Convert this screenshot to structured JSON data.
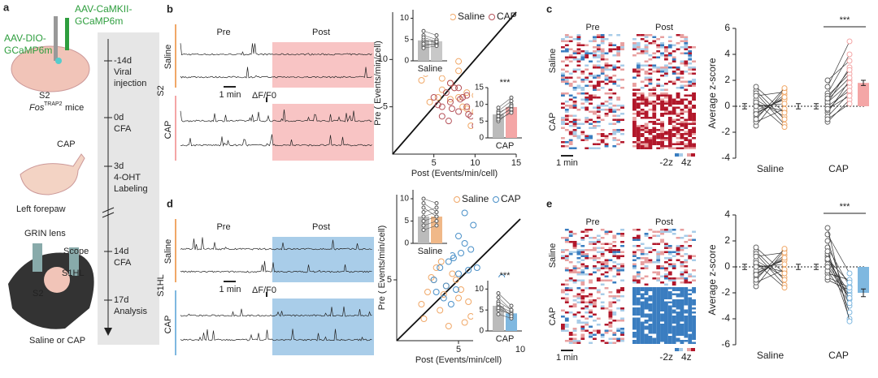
{
  "panel_a": {
    "label": "a",
    "virus1": [
      "AAV-CaMKII-",
      "GCaMP6m"
    ],
    "virus2": [
      "AAV-DIO-",
      "GCaMP6m"
    ],
    "region": "S2",
    "mice": "Fos",
    "mice_sup": "TRAP2",
    "mice_suffix": "mice",
    "cap": "CAP",
    "paw": "Left forepaw",
    "timeline": [
      [
        "-14d",
        "Viral",
        "injection"
      ],
      [
        "0d",
        "CFA"
      ],
      [
        "3d",
        "4-OHT",
        "Labeling"
      ],
      [
        "14d",
        "CFA"
      ],
      [
        "17d",
        "Analysis"
      ]
    ],
    "lens": "GRIN lens",
    "scope": "Scope",
    "s1hl": "S1HL",
    "s2": "S2",
    "treatment": "Saline or CAP"
  },
  "panel_b": {
    "label": "b",
    "pre": "Pre",
    "post": "Post",
    "groups": [
      "Saline",
      "CAP"
    ],
    "region": "S2",
    "time_scale": "1 min",
    "df_scale": "ΔF/F0"
  },
  "panel_c": {
    "label": "c",
    "pre": "Pre",
    "post": "Post",
    "groups": [
      "Saline",
      "CAP"
    ],
    "time_scale": "1 min",
    "cmin": "-2z",
    "cmax": "4z"
  },
  "panel_d": {
    "label": "d",
    "pre": "Pre",
    "post": "Post",
    "groups": [
      "Saline",
      "CAP"
    ],
    "region": "S1HL",
    "time_scale": "1 min",
    "df_scale": "ΔF/F0"
  },
  "panel_e": {
    "label": "e",
    "pre": "Pre",
    "post": "Post",
    "groups": [
      "Saline",
      "CAP"
    ],
    "time_scale": "1 min",
    "cmin": "-2z",
    "cmax": "4z"
  },
  "chart_data": [
    {
      "type": "scatter",
      "xlabel": "Post (Events/min/cell)",
      "ylabel": "Pre ( Events/min/cell)",
      "xlim": [
        0,
        15
      ],
      "ylim": [
        0,
        15
      ],
      "xticks": [
        5,
        10,
        15
      ],
      "yticks": [
        5,
        10
      ],
      "legend": "top-right",
      "identity_line": true,
      "series": [
        {
          "name": "Saline",
          "color": "#f0a868",
          "x": [
            4,
            5,
            6,
            7,
            8,
            9,
            10,
            11,
            12,
            6.5,
            7.5,
            8.5,
            9.5,
            5.5,
            10.5,
            11.5,
            3.5,
            6,
            7,
            8,
            9,
            10,
            12.5,
            4.5,
            8
          ],
          "y": [
            8.5,
            9,
            8,
            7.5,
            6,
            6.5,
            4.5,
            3.5,
            4,
            9.2,
            7,
            5,
            3,
            6,
            5.5,
            2.5,
            7.8,
            6.8,
            5.8,
            8.8,
            4.8,
            6.2,
            3.2,
            5.5,
            9.8
          ]
        },
        {
          "name": "CAP",
          "color": "#b5525a",
          "x": [
            5,
            6,
            6.5,
            7,
            7.5,
            8,
            8.5,
            9,
            9.5,
            10,
            6,
            7,
            8,
            9,
            5.5,
            7.2,
            8.2,
            9.2,
            6.8,
            10.5
          ],
          "y": [
            6,
            5,
            6.5,
            5.5,
            7,
            4.5,
            6,
            5,
            4,
            3,
            4,
            7.5,
            7,
            6.2,
            5.2,
            4.8,
            5.8,
            4.2,
            3.5,
            5.4
          ]
        }
      ]
    },
    {
      "type": "inset",
      "xlabel": "Saline",
      "ylim": [
        0,
        12
      ],
      "yticks": [
        0,
        5,
        10
      ],
      "means": [
        4.8,
        4.6
      ],
      "colors": [
        "#bbbbbb",
        "#c8c8c8"
      ],
      "pre": [
        3.5,
        4.5,
        6,
        5,
        4,
        7,
        3,
        5.5
      ],
      "post": [
        4,
        4.8,
        5,
        4.2,
        3.8,
        6,
        3.5,
        4.5
      ]
    },
    {
      "type": "inset",
      "xlabel": "CAP",
      "annotation": "***",
      "ylim": [
        0,
        15
      ],
      "yticks": [
        0,
        5,
        10,
        15
      ],
      "means": [
        7,
        9.2
      ],
      "colors": [
        "#bbbbbb",
        "#f4a6a6"
      ],
      "pre": [
        5,
        6,
        7,
        8,
        6.5,
        9,
        7.5,
        5.5
      ],
      "post": [
        8,
        9,
        10,
        11,
        8.5,
        12,
        9.5,
        7.5
      ]
    },
    {
      "type": "paired",
      "ylabel": "Average z-score",
      "ylim": [
        -4,
        6
      ],
      "yticks": [
        -4,
        -2,
        0,
        2,
        4,
        6
      ],
      "categories": [
        "Saline",
        "CAP"
      ],
      "annotation": "***",
      "series": [
        {
          "color": "#f0a868",
          "pre": [
            0.5,
            -0.5,
            1.2,
            -1.5,
            0.2,
            -0.8,
            1,
            -0.3,
            0.8,
            -1.2,
            0.3,
            -0.6,
            1.5,
            -1,
            0
          ],
          "post": [
            -0.8,
            0.6,
            -1,
            1.3,
            -0.4,
            0.9,
            -1.4,
            0.5,
            1.1,
            -0.2,
            -1.6,
            0.7,
            -0.5,
            1.4,
            0.2
          ],
          "means": [
            0,
            0
          ],
          "errors": [
            0.2,
            0.2
          ]
        },
        {
          "color": "#f4a6a6",
          "pre": [
            1,
            -0.5,
            0.2,
            -1.2,
            0.8,
            -0.3,
            1.5,
            0.5,
            -0.8,
            0.3,
            2,
            -1,
            0,
            0.6,
            -0.2
          ],
          "post": [
            4,
            2,
            3,
            0.5,
            2.5,
            1.5,
            5,
            2.2,
            1,
            1.8,
            3.5,
            0.2,
            1.2,
            2.8,
            0.8
          ],
          "means": [
            0,
            1.8
          ],
          "errors": [
            0.2,
            0.2
          ]
        }
      ]
    },
    {
      "type": "scatter",
      "xlabel": "Post (Events/min/cell)",
      "ylabel": "Pre ( Events/min/cell)",
      "xlim": [
        0,
        10
      ],
      "ylim": [
        0,
        12
      ],
      "xticks": [
        5,
        10
      ],
      "yticks": [
        5
      ],
      "legend": "top-right",
      "identity_line": true,
      "series": [
        {
          "name": "Saline",
          "color": "#f0a868",
          "x": [
            2,
            2.5,
            3,
            3.5,
            4,
            4.5,
            5,
            5.5,
            6,
            3.2,
            4.2,
            5.2,
            2.8,
            3.8,
            4.8,
            6.5,
            7,
            2.2,
            5.8,
            3.6
          ],
          "y": [
            3,
            4,
            5,
            2.5,
            4.5,
            5.5,
            3.5,
            1.5,
            2,
            6,
            1.2,
            4.2,
            5.2,
            3.8,
            5,
            4.5,
            2.8,
            1.8,
            3.2,
            6.5
          ]
        },
        {
          "name": "CAP",
          "color": "#4a90c8",
          "x": [
            3,
            3.5,
            4,
            4.5,
            5,
            5.5,
            6,
            6.5,
            3.8,
            4.2,
            4.8,
            5.2,
            5.8,
            6.2,
            4.4,
            8.5,
            5.5,
            3.2,
            4.6,
            5
          ],
          "y": [
            5,
            6,
            4.5,
            7,
            5.5,
            8,
            7.5,
            6,
            3.5,
            6.5,
            4.2,
            7.2,
            5.8,
            9.5,
            3,
            5.2,
            10.5,
            4,
            6.8,
            8.6
          ]
        }
      ]
    },
    {
      "type": "inset",
      "xlabel": "Saline",
      "ylim": [
        0,
        12
      ],
      "yticks": [
        0,
        5,
        10
      ],
      "means": [
        6,
        6
      ],
      "colors": [
        "#bbbbbb",
        "#f0b888"
      ],
      "pre": [
        4,
        6,
        8,
        5,
        7,
        9,
        3,
        10
      ],
      "post": [
        5,
        7,
        6,
        6,
        8,
        7,
        4,
        9
      ]
    },
    {
      "type": "inset",
      "xlabel": "CAP",
      "annotation": "***",
      "ylim": [
        0,
        12
      ],
      "yticks": [
        0,
        5,
        10
      ],
      "means": [
        6,
        4.2
      ],
      "colors": [
        "#bbbbbb",
        "#7fb8e0"
      ],
      "pre": [
        4,
        5,
        7,
        6,
        8,
        5.5,
        6.5,
        9
      ],
      "post": [
        3,
        4,
        5,
        4.5,
        5,
        4,
        3.5,
        6
      ]
    },
    {
      "type": "paired",
      "ylabel": "Average z-score",
      "ylim": [
        -6,
        4
      ],
      "yticks": [
        -6,
        -4,
        -2,
        0,
        2,
        4
      ],
      "categories": [
        "Saline",
        "CAP"
      ],
      "annotation": "***",
      "series": [
        {
          "color": "#f0a868",
          "pre": [
            0.5,
            -0.5,
            1.2,
            -1.5,
            0.2,
            -0.8,
            1,
            -0.3,
            0.8,
            -1.2,
            0.3,
            -0.6,
            1.5,
            -1,
            0
          ],
          "post": [
            -0.8,
            0.6,
            -1,
            1.3,
            -0.4,
            0.9,
            -1.4,
            0.5,
            1.1,
            -0.2,
            -1.6,
            0.7,
            -0.5,
            1.4,
            0.2
          ],
          "means": [
            0,
            0
          ],
          "errors": [
            0.2,
            0.2
          ]
        },
        {
          "color": "#7fb8e0",
          "pre": [
            1.5,
            0.5,
            2,
            -0.5,
            0.8,
            -1,
            1,
            0.2,
            2.5,
            -0.3,
            0.6,
            1.2,
            -0.8,
            0,
            3
          ],
          "post": [
            -1.5,
            -2,
            -3,
            -1,
            -2.5,
            -1.8,
            -4,
            -2.2,
            -0.5,
            -2.8,
            -1.2,
            -3.5,
            -1.6,
            -2.4,
            -4.2
          ],
          "means": [
            0,
            -2
          ],
          "errors": [
            0.2,
            0.3
          ]
        }
      ]
    }
  ]
}
